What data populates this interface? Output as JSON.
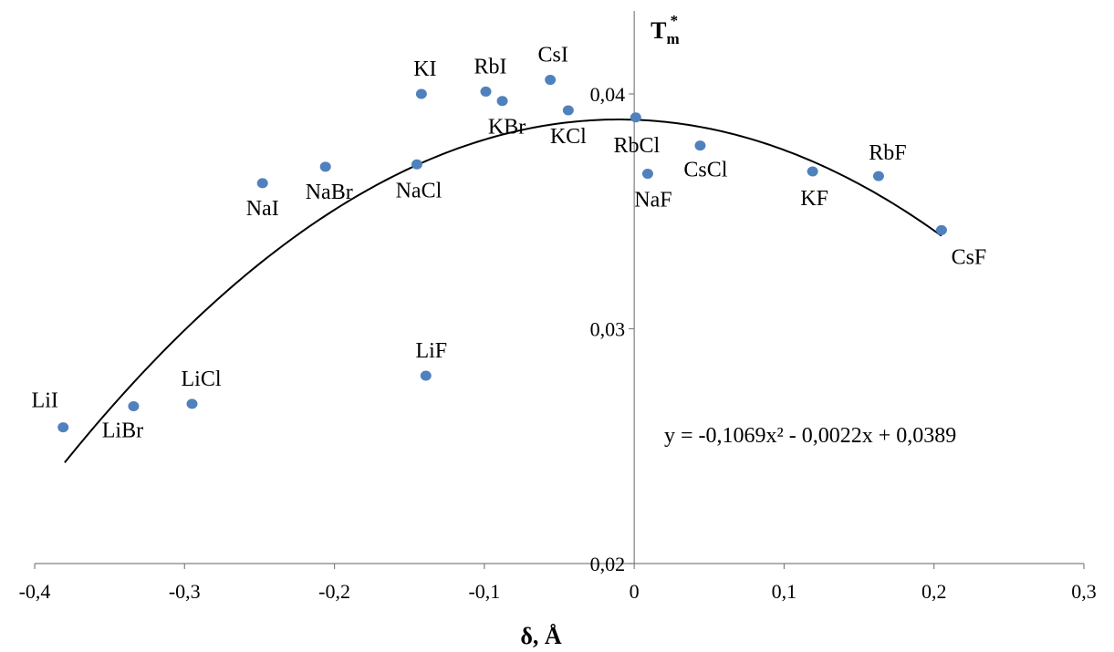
{
  "chart_data": {
    "type": "scatter",
    "title": "",
    "xlabel": "δ, Å",
    "ylabel": "T*m",
    "ylabel_base": "T",
    "ylabel_sub": "m",
    "ylabel_sup": "*",
    "xlim": [
      -0.4,
      0.3
    ],
    "ylim": [
      0.02,
      0.044
    ],
    "x_ticks": [
      -0.4,
      -0.3,
      -0.2,
      -0.1,
      0,
      0.1,
      0.2,
      0.3
    ],
    "x_tick_labels": [
      "-0,4",
      "-0,3",
      "-0,2",
      "-0,1",
      "0",
      "0,1",
      "0,2",
      "0,3"
    ],
    "y_ticks": [
      0.02,
      0.03,
      0.04
    ],
    "y_tick_labels": [
      "0,02",
      "0,03",
      "0,04"
    ],
    "grid": false,
    "legend": "none",
    "point_color": "#4F81BD",
    "points": [
      {
        "label": "LiI",
        "x": -0.381,
        "y": 0.0258
      },
      {
        "label": "LiBr",
        "x": -0.334,
        "y": 0.0267
      },
      {
        "label": "LiCl",
        "x": -0.295,
        "y": 0.0268
      },
      {
        "label": "NaI",
        "x": -0.248,
        "y": 0.0362
      },
      {
        "label": "NaBr",
        "x": -0.206,
        "y": 0.0369
      },
      {
        "label": "NaCl",
        "x": -0.145,
        "y": 0.037
      },
      {
        "label": "LiF",
        "x": -0.139,
        "y": 0.028
      },
      {
        "label": "KI",
        "x": -0.142,
        "y": 0.04
      },
      {
        "label": "RbI",
        "x": -0.099,
        "y": 0.0401
      },
      {
        "label": "KBr",
        "x": -0.088,
        "y": 0.0397
      },
      {
        "label": "CsI",
        "x": -0.056,
        "y": 0.0406
      },
      {
        "label": "KCl",
        "x": -0.044,
        "y": 0.0393
      },
      {
        "label": "RbCl",
        "x": 0.001,
        "y": 0.039
      },
      {
        "label": "NaF",
        "x": 0.009,
        "y": 0.0366
      },
      {
        "label": "CsCl",
        "x": 0.044,
        "y": 0.0378
      },
      {
        "label": "KF",
        "x": 0.119,
        "y": 0.0367
      },
      {
        "label": "RbF",
        "x": 0.163,
        "y": 0.0365
      },
      {
        "label": "CsF",
        "x": 0.205,
        "y": 0.0342
      }
    ],
    "trendline": {
      "type": "polynomial",
      "coefficients": [
        -0.1069,
        -0.0022,
        0.0389
      ],
      "x_range": [
        -0.38,
        0.205
      ],
      "equation_label": "y = -0,1069x² - 0,0022x + 0,0389",
      "color": "#000000"
    }
  }
}
